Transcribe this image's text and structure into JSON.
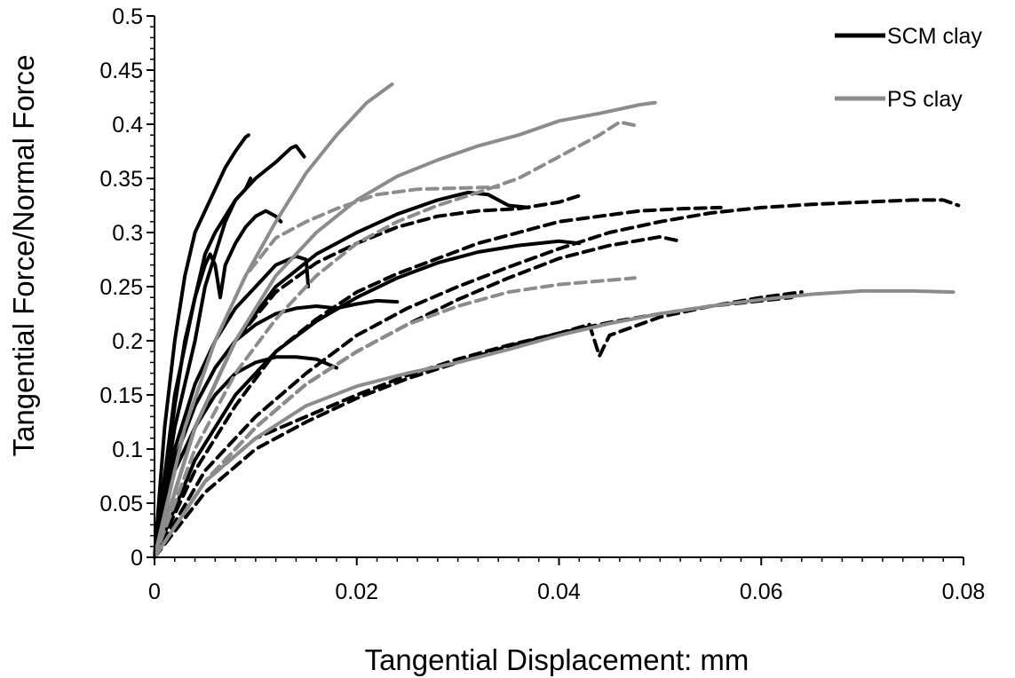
{
  "chart_data": {
    "type": "line",
    "title": "",
    "xlabel": "Tangential Displacement: mm",
    "ylabel": "Tangential Force/Normal Force",
    "xlim": [
      0,
      0.08
    ],
    "ylim": [
      0,
      0.5
    ],
    "x_ticks": [
      "0",
      "0.02",
      "0.04",
      "0.06",
      "0.08"
    ],
    "y_ticks": [
      "0",
      "0.05",
      "0.1",
      "0.15",
      "0.2",
      "0.25",
      "0.3",
      "0.35",
      "0.4",
      "0.45",
      "0.5"
    ],
    "grid": false,
    "legend_position": "top-right",
    "legend": [
      {
        "label": "SCM clay",
        "color": "#000000"
      },
      {
        "label": "PS clay",
        "color": "#8c8c8c"
      }
    ],
    "series": [
      {
        "group": "SCM clay",
        "style": "solid",
        "color": "#000000",
        "points": [
          [
            0,
            0
          ],
          [
            0.001,
            0.12
          ],
          [
            0.002,
            0.2
          ],
          [
            0.003,
            0.26
          ],
          [
            0.004,
            0.3
          ],
          [
            0.005,
            0.32
          ],
          [
            0.006,
            0.34
          ],
          [
            0.007,
            0.36
          ],
          [
            0.008,
            0.375
          ],
          [
            0.009,
            0.388
          ],
          [
            0.0093,
            0.39
          ]
        ]
      },
      {
        "group": "SCM clay",
        "style": "solid",
        "color": "#000000",
        "points": [
          [
            0,
            0
          ],
          [
            0.002,
            0.12
          ],
          [
            0.004,
            0.2
          ],
          [
            0.005,
            0.25
          ],
          [
            0.006,
            0.28
          ],
          [
            0.007,
            0.31
          ],
          [
            0.008,
            0.33
          ],
          [
            0.009,
            0.34
          ],
          [
            0.0095,
            0.35
          ]
        ]
      },
      {
        "group": "SCM clay",
        "style": "solid",
        "color": "#000000",
        "points": [
          [
            0,
            0
          ],
          [
            0.002,
            0.15
          ],
          [
            0.004,
            0.24
          ],
          [
            0.005,
            0.28
          ],
          [
            0.006,
            0.3
          ],
          [
            0.008,
            0.33
          ],
          [
            0.01,
            0.35
          ],
          [
            0.012,
            0.365
          ],
          [
            0.0135,
            0.378
          ],
          [
            0.014,
            0.38
          ],
          [
            0.0148,
            0.37
          ]
        ]
      },
      {
        "group": "SCM clay",
        "style": "solid",
        "color": "#000000",
        "points": [
          [
            0,
            0
          ],
          [
            0.002,
            0.14
          ],
          [
            0.003,
            0.2
          ],
          [
            0.004,
            0.24
          ],
          [
            0.005,
            0.27
          ],
          [
            0.0055,
            0.28
          ],
          [
            0.006,
            0.27
          ],
          [
            0.0065,
            0.24
          ],
          [
            0.007,
            0.27
          ],
          [
            0.008,
            0.29
          ],
          [
            0.009,
            0.305
          ],
          [
            0.01,
            0.315
          ],
          [
            0.011,
            0.32
          ],
          [
            0.012,
            0.315
          ],
          [
            0.0125,
            0.31
          ]
        ]
      },
      {
        "group": "SCM clay",
        "style": "solid",
        "color": "#000000",
        "points": [
          [
            0,
            0
          ],
          [
            0.002,
            0.1
          ],
          [
            0.004,
            0.16
          ],
          [
            0.006,
            0.2
          ],
          [
            0.008,
            0.23
          ],
          [
            0.01,
            0.25
          ],
          [
            0.012,
            0.27
          ],
          [
            0.014,
            0.278
          ],
          [
            0.015,
            0.275
          ],
          [
            0.0152,
            0.25
          ]
        ]
      },
      {
        "group": "SCM clay",
        "style": "solid",
        "color": "#000000",
        "points": [
          [
            0,
            0
          ],
          [
            0.002,
            0.09
          ],
          [
            0.004,
            0.14
          ],
          [
            0.006,
            0.175
          ],
          [
            0.008,
            0.2
          ],
          [
            0.01,
            0.215
          ],
          [
            0.012,
            0.225
          ],
          [
            0.014,
            0.23
          ],
          [
            0.016,
            0.232
          ],
          [
            0.018,
            0.23
          ],
          [
            0.02,
            0.234
          ],
          [
            0.022,
            0.237
          ],
          [
            0.024,
            0.236
          ]
        ]
      },
      {
        "group": "SCM clay",
        "style": "solid",
        "color": "#000000",
        "points": [
          [
            0,
            0
          ],
          [
            0.002,
            0.08
          ],
          [
            0.004,
            0.12
          ],
          [
            0.006,
            0.15
          ],
          [
            0.008,
            0.17
          ],
          [
            0.01,
            0.18
          ],
          [
            0.012,
            0.185
          ],
          [
            0.014,
            0.185
          ],
          [
            0.016,
            0.183
          ],
          [
            0.0175,
            0.177
          ],
          [
            0.018,
            0.175
          ]
        ]
      },
      {
        "group": "SCM clay",
        "style": "solid",
        "color": "#000000",
        "points": [
          [
            0,
            0
          ],
          [
            0.004,
            0.12
          ],
          [
            0.008,
            0.2
          ],
          [
            0.012,
            0.25
          ],
          [
            0.016,
            0.28
          ],
          [
            0.02,
            0.3
          ],
          [
            0.024,
            0.317
          ],
          [
            0.028,
            0.33
          ],
          [
            0.031,
            0.337
          ],
          [
            0.033,
            0.335
          ],
          [
            0.035,
            0.325
          ],
          [
            0.037,
            0.323
          ]
        ]
      },
      {
        "group": "SCM clay",
        "style": "solid",
        "color": "#000000",
        "points": [
          [
            0,
            0
          ],
          [
            0.004,
            0.09
          ],
          [
            0.008,
            0.15
          ],
          [
            0.012,
            0.19
          ],
          [
            0.016,
            0.218
          ],
          [
            0.02,
            0.24
          ],
          [
            0.024,
            0.258
          ],
          [
            0.028,
            0.272
          ],
          [
            0.032,
            0.282
          ],
          [
            0.036,
            0.288
          ],
          [
            0.04,
            0.292
          ],
          [
            0.042,
            0.29
          ]
        ]
      },
      {
        "group": "SCM clay",
        "style": "dashed",
        "color": "#000000",
        "points": [
          [
            0,
            0
          ],
          [
            0.004,
            0.12
          ],
          [
            0.008,
            0.2
          ],
          [
            0.012,
            0.245
          ],
          [
            0.016,
            0.272
          ],
          [
            0.02,
            0.29
          ],
          [
            0.024,
            0.305
          ],
          [
            0.028,
            0.315
          ],
          [
            0.032,
            0.32
          ],
          [
            0.036,
            0.322
          ],
          [
            0.04,
            0.328
          ],
          [
            0.042,
            0.334
          ]
        ]
      },
      {
        "group": "SCM clay",
        "style": "dashed",
        "color": "#000000",
        "points": [
          [
            0,
            0
          ],
          [
            0.004,
            0.08
          ],
          [
            0.008,
            0.14
          ],
          [
            0.012,
            0.19
          ],
          [
            0.016,
            0.22
          ],
          [
            0.02,
            0.245
          ],
          [
            0.024,
            0.262
          ],
          [
            0.028,
            0.276
          ],
          [
            0.032,
            0.29
          ],
          [
            0.036,
            0.3
          ],
          [
            0.04,
            0.31
          ],
          [
            0.044,
            0.315
          ],
          [
            0.048,
            0.32
          ],
          [
            0.052,
            0.322
          ],
          [
            0.056,
            0.323
          ]
        ]
      },
      {
        "group": "SCM clay",
        "style": "dashed",
        "color": "#000000",
        "points": [
          [
            0,
            0
          ],
          [
            0.005,
            0.07
          ],
          [
            0.01,
            0.12
          ],
          [
            0.015,
            0.16
          ],
          [
            0.02,
            0.19
          ],
          [
            0.025,
            0.215
          ],
          [
            0.03,
            0.238
          ],
          [
            0.035,
            0.258
          ],
          [
            0.04,
            0.276
          ],
          [
            0.045,
            0.288
          ],
          [
            0.05,
            0.296
          ],
          [
            0.052,
            0.292
          ]
        ]
      },
      {
        "group": "SCM clay",
        "style": "dashed",
        "color": "#000000",
        "points": [
          [
            0,
            0
          ],
          [
            0.005,
            0.08
          ],
          [
            0.01,
            0.13
          ],
          [
            0.015,
            0.17
          ],
          [
            0.02,
            0.205
          ],
          [
            0.025,
            0.23
          ],
          [
            0.03,
            0.25
          ],
          [
            0.035,
            0.268
          ],
          [
            0.04,
            0.285
          ],
          [
            0.045,
            0.3
          ],
          [
            0.05,
            0.31
          ],
          [
            0.055,
            0.318
          ],
          [
            0.06,
            0.323
          ],
          [
            0.065,
            0.326
          ],
          [
            0.07,
            0.328
          ],
          [
            0.075,
            0.33
          ],
          [
            0.078,
            0.33
          ],
          [
            0.0795,
            0.325
          ]
        ]
      },
      {
        "group": "SCM clay",
        "style": "dashed",
        "color": "#000000",
        "points": [
          [
            0,
            0
          ],
          [
            0.005,
            0.06
          ],
          [
            0.01,
            0.1
          ],
          [
            0.015,
            0.125
          ],
          [
            0.02,
            0.147
          ],
          [
            0.025,
            0.165
          ],
          [
            0.03,
            0.18
          ],
          [
            0.035,
            0.195
          ],
          [
            0.04,
            0.207
          ],
          [
            0.043,
            0.215
          ],
          [
            0.044,
            0.186
          ],
          [
            0.045,
            0.205
          ],
          [
            0.05,
            0.222
          ],
          [
            0.055,
            0.232
          ],
          [
            0.06,
            0.24
          ],
          [
            0.064,
            0.245
          ]
        ]
      },
      {
        "group": "SCM clay",
        "style": "dashed",
        "color": "#000000",
        "points": [
          [
            0,
            0
          ],
          [
            0.005,
            0.07
          ],
          [
            0.01,
            0.11
          ],
          [
            0.015,
            0.13
          ],
          [
            0.02,
            0.15
          ],
          [
            0.025,
            0.168
          ],
          [
            0.03,
            0.183
          ],
          [
            0.035,
            0.196
          ],
          [
            0.04,
            0.207
          ],
          [
            0.045,
            0.217
          ],
          [
            0.05,
            0.225
          ],
          [
            0.055,
            0.232
          ],
          [
            0.06,
            0.237
          ],
          [
            0.063,
            0.24
          ]
        ]
      },
      {
        "group": "PS clay",
        "style": "solid",
        "color": "#8c8c8c",
        "points": [
          [
            0,
            0
          ],
          [
            0.003,
            0.12
          ],
          [
            0.006,
            0.2
          ],
          [
            0.009,
            0.26
          ],
          [
            0.012,
            0.31
          ],
          [
            0.015,
            0.355
          ],
          [
            0.018,
            0.39
          ],
          [
            0.021,
            0.42
          ],
          [
            0.0235,
            0.437
          ]
        ]
      },
      {
        "group": "PS clay",
        "style": "solid",
        "color": "#8c8c8c",
        "points": [
          [
            0,
            0
          ],
          [
            0.004,
            0.12
          ],
          [
            0.008,
            0.2
          ],
          [
            0.012,
            0.26
          ],
          [
            0.016,
            0.3
          ],
          [
            0.02,
            0.33
          ],
          [
            0.024,
            0.352
          ],
          [
            0.028,
            0.367
          ],
          [
            0.032,
            0.38
          ],
          [
            0.036,
            0.39
          ],
          [
            0.04,
            0.403
          ],
          [
            0.044,
            0.41
          ],
          [
            0.048,
            0.418
          ],
          [
            0.0495,
            0.42
          ]
        ]
      },
      {
        "group": "PS clay",
        "style": "solid",
        "color": "#8c8c8c",
        "points": [
          [
            0,
            0
          ],
          [
            0.005,
            0.07
          ],
          [
            0.01,
            0.11
          ],
          [
            0.015,
            0.14
          ],
          [
            0.02,
            0.158
          ],
          [
            0.025,
            0.17
          ],
          [
            0.03,
            0.18
          ],
          [
            0.035,
            0.192
          ],
          [
            0.04,
            0.205
          ],
          [
            0.045,
            0.216
          ],
          [
            0.05,
            0.225
          ],
          [
            0.055,
            0.232
          ],
          [
            0.06,
            0.238
          ],
          [
            0.065,
            0.243
          ],
          [
            0.07,
            0.246
          ],
          [
            0.075,
            0.246
          ],
          [
            0.079,
            0.245
          ]
        ]
      },
      {
        "group": "PS clay",
        "style": "dashed",
        "color": "#8c8c8c",
        "points": [
          [
            0,
            0
          ],
          [
            0.003,
            0.12
          ],
          [
            0.006,
            0.2
          ],
          [
            0.009,
            0.26
          ],
          [
            0.012,
            0.295
          ],
          [
            0.015,
            0.31
          ],
          [
            0.018,
            0.322
          ],
          [
            0.022,
            0.335
          ],
          [
            0.026,
            0.34
          ],
          [
            0.03,
            0.341
          ],
          [
            0.034,
            0.342
          ]
        ]
      },
      {
        "group": "PS clay",
        "style": "dashed",
        "color": "#8c8c8c",
        "points": [
          [
            0,
            0
          ],
          [
            0.004,
            0.1
          ],
          [
            0.008,
            0.17
          ],
          [
            0.012,
            0.22
          ],
          [
            0.016,
            0.26
          ],
          [
            0.02,
            0.29
          ],
          [
            0.024,
            0.31
          ],
          [
            0.028,
            0.325
          ],
          [
            0.032,
            0.337
          ],
          [
            0.036,
            0.35
          ],
          [
            0.04,
            0.37
          ],
          [
            0.044,
            0.39
          ],
          [
            0.046,
            0.402
          ],
          [
            0.048,
            0.398
          ]
        ]
      },
      {
        "group": "PS clay",
        "style": "dashed",
        "color": "#8c8c8c",
        "points": [
          [
            0,
            0
          ],
          [
            0.005,
            0.07
          ],
          [
            0.01,
            0.12
          ],
          [
            0.015,
            0.16
          ],
          [
            0.02,
            0.19
          ],
          [
            0.025,
            0.215
          ],
          [
            0.03,
            0.232
          ],
          [
            0.035,
            0.245
          ],
          [
            0.04,
            0.252
          ],
          [
            0.045,
            0.256
          ],
          [
            0.0475,
            0.258
          ]
        ]
      }
    ]
  }
}
